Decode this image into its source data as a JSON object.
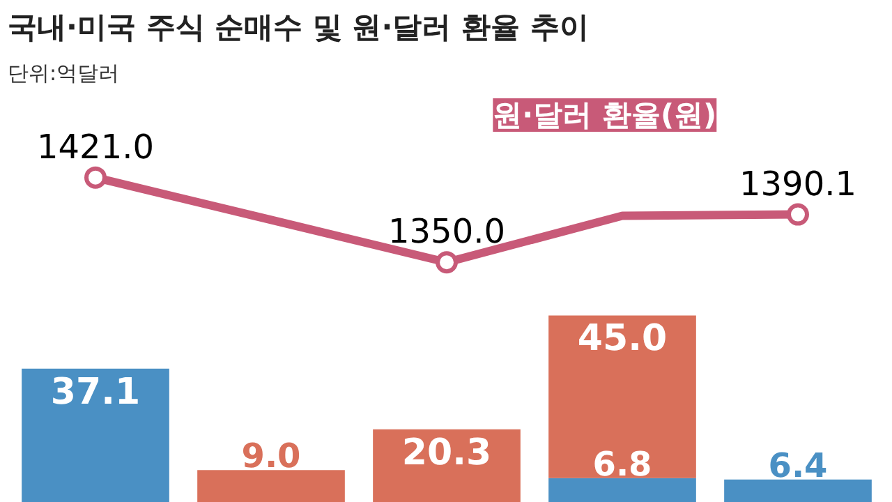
{
  "chart_data": [
    {
      "type": "line",
      "title": "국내·미국 주식 순매수 및 원·달러 환율 추이",
      "subtitle": "단위:억달러",
      "categories": [
        null,
        null,
        null,
        null,
        null
      ],
      "tick_labels": false,
      "marker": "circle",
      "series": [
        {
          "name": "원·달러 환율(원)",
          "color": "#c85a78",
          "values": [
            1421.0,
            1385.5,
            1350.0,
            1389.0,
            1390.1
          ],
          "value_labels": [
            "1421.0",
            null,
            "1350.0",
            null,
            "1390.1"
          ]
        }
      ]
    },
    {
      "type": "bar",
      "categories": [
        null,
        null,
        null,
        null,
        null
      ],
      "stacked": true,
      "tick_labels": false,
      "series": [
        {
          "color": "#4a90c4",
          "values": [
            37.1,
            null,
            null,
            6.8,
            6.4
          ],
          "value_labels": [
            "37.1",
            null,
            null,
            "6.8",
            "6.4"
          ]
        },
        {
          "color": "#d9705a",
          "values": [
            null,
            9.0,
            20.3,
            45.0,
            null
          ],
          "value_labels": [
            null,
            "9.0",
            "20.3",
            "45.0",
            null
          ]
        }
      ]
    }
  ]
}
